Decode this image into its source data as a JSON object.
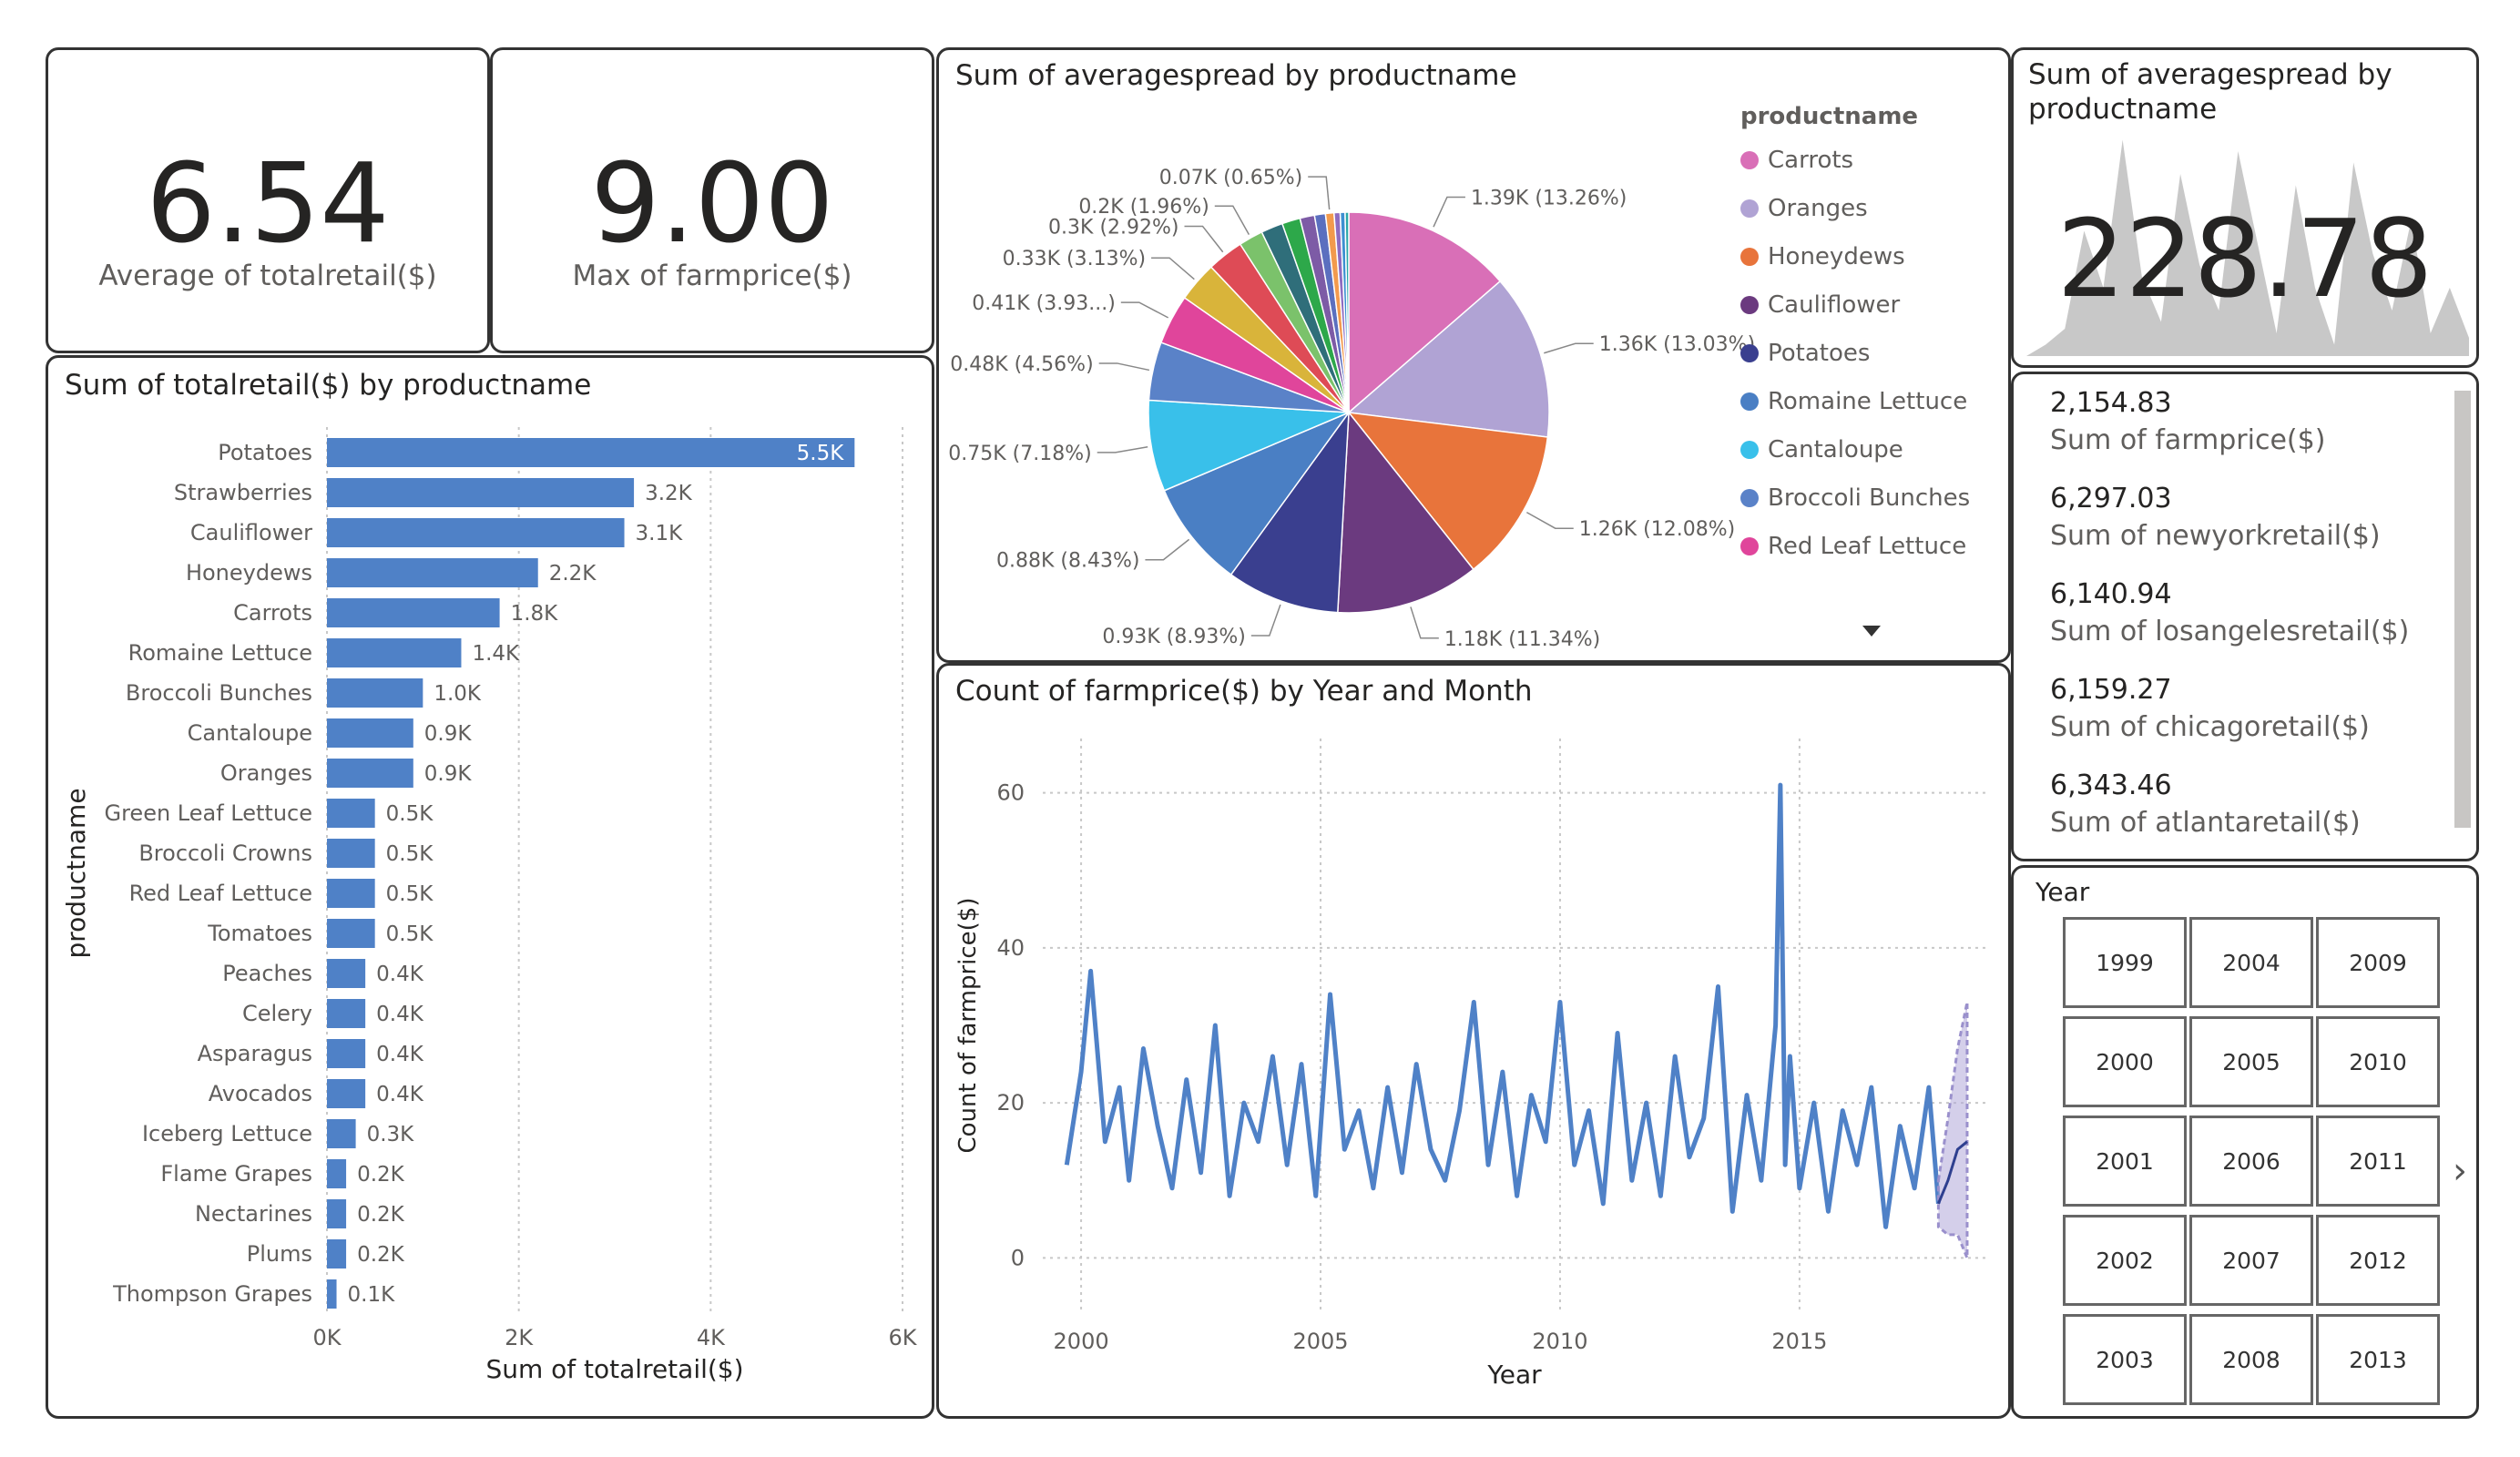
{
  "cards": [
    {
      "value": "6.54",
      "label": "Average of totalretail($)"
    },
    {
      "value": "9.00",
      "label": "Max of farmprice($)"
    }
  ],
  "sparkline_card": {
    "title": "Sum of averagespread by productname",
    "value": "228.78"
  },
  "multi_row_card": [
    {
      "value": "2,154.83",
      "label": "Sum of farmprice($)"
    },
    {
      "value": "6,297.03",
      "label": "Sum of newyorkretail($)"
    },
    {
      "value": "6,140.94",
      "label": "Sum of losangelesretail($)"
    },
    {
      "value": "6,159.27",
      "label": "Sum of chicagoretail($)"
    },
    {
      "value": "6,343.46",
      "label": "Sum of atlantaretail($)"
    }
  ],
  "slicer": {
    "title": "Year",
    "years": [
      "1999",
      "2004",
      "2009",
      "2000",
      "2005",
      "2010",
      "2001",
      "2006",
      "2011",
      "2002",
      "2007",
      "2012",
      "2003",
      "2008",
      "2013"
    ]
  },
  "chart_data": [
    {
      "type": "bar",
      "orientation": "horizontal",
      "title": "Sum of totalretail($) by productname",
      "xlabel": "Sum of totalretail($)",
      "ylabel": "productname",
      "xlim": [
        0,
        6000
      ],
      "xticks": [
        "0K",
        "2K",
        "4K",
        "6K"
      ],
      "grid": true,
      "color": "#4f81c7",
      "categories": [
        "Potatoes",
        "Strawberries",
        "Cauliflower",
        "Honeydews",
        "Carrots",
        "Romaine Lettuce",
        "Broccoli Bunches",
        "Cantaloupe",
        "Oranges",
        "Green Leaf Lettuce",
        "Broccoli Crowns",
        "Red Leaf Lettuce",
        "Tomatoes",
        "Peaches",
        "Celery",
        "Asparagus",
        "Avocados",
        "Iceberg Lettuce",
        "Flame Grapes",
        "Nectarines",
        "Plums",
        "Thompson Grapes"
      ],
      "values": [
        5500,
        3200,
        3100,
        2200,
        1800,
        1400,
        1000,
        900,
        900,
        500,
        500,
        500,
        500,
        400,
        400,
        400,
        400,
        300,
        200,
        200,
        200,
        100
      ],
      "data_labels": [
        "5.5K",
        "3.2K",
        "3.1K",
        "2.2K",
        "1.8K",
        "1.4K",
        "1.0K",
        "0.9K",
        "0.9K",
        "0.5K",
        "0.5K",
        "0.5K",
        "0.5K",
        "0.4K",
        "0.4K",
        "0.4K",
        "0.4K",
        "0.3K",
        "0.2K",
        "0.2K",
        "0.2K",
        "0.1K"
      ]
    },
    {
      "type": "pie",
      "title": "Sum of averagespread by productname",
      "legend_title": "productname",
      "legend_position": "right",
      "legend": [
        {
          "name": "Carrots",
          "color": "#d96fb7"
        },
        {
          "name": "Oranges",
          "color": "#b0a3d4"
        },
        {
          "name": "Honeydews",
          "color": "#e8743b"
        },
        {
          "name": "Cauliflower",
          "color": "#6b3a7f"
        },
        {
          "name": "Potatoes",
          "color": "#3a3f8f"
        },
        {
          "name": "Romaine Lettuce",
          "color": "#4a7fc4"
        },
        {
          "name": "Cantaloupe",
          "color": "#39c0ea"
        },
        {
          "name": "Broccoli Bunches",
          "color": "#5a82c8"
        },
        {
          "name": "Red Leaf Lettuce",
          "color": "#e0459b"
        }
      ],
      "slices": [
        {
          "value": 1390,
          "label": "1.39K (13.26%)",
          "color": "#d96fb7"
        },
        {
          "value": 1360,
          "label": "1.36K (13.03%)",
          "color": "#b0a3d4"
        },
        {
          "value": 1260,
          "label": "1.26K (12.08%)",
          "color": "#e8743b"
        },
        {
          "value": 1180,
          "label": "1.18K (11.34%)",
          "color": "#6b3a7f"
        },
        {
          "value": 930,
          "label": "0.93K (8.93%)",
          "color": "#3a3f8f"
        },
        {
          "value": 880,
          "label": "0.88K (8.43%)",
          "color": "#4a7fc4"
        },
        {
          "value": 750,
          "label": "0.75K (7.18%)",
          "color": "#39c0ea"
        },
        {
          "value": 480,
          "label": "0.48K (4.56%)",
          "color": "#5a82c8"
        },
        {
          "value": 410,
          "label": "0.41K (3.93...)",
          "color": "#e0459b"
        },
        {
          "value": 330,
          "label": "0.33K (3.13%)",
          "color": "#d9b43a"
        },
        {
          "value": 300,
          "label": "0.3K (2.92%)",
          "color": "#de4b56"
        },
        {
          "value": 200,
          "label": "0.2K (1.96%)",
          "color": "#7bc26b"
        },
        {
          "value": 180,
          "label": "",
          "color": "#2f6e7a"
        },
        {
          "value": 150,
          "label": "",
          "color": "#2da84a"
        },
        {
          "value": 120,
          "label": "",
          "color": "#7d5ba6"
        },
        {
          "value": 90,
          "label": "",
          "color": "#5b6fbf"
        },
        {
          "value": 70,
          "label": "0.07K (0.65%)",
          "color": "#f29a4d"
        },
        {
          "value": 50,
          "label": "",
          "color": "#8e6cc0"
        },
        {
          "value": 40,
          "label": "",
          "color": "#3d8fd1"
        },
        {
          "value": 30,
          "label": "",
          "color": "#2aa8a8"
        }
      ]
    },
    {
      "type": "line",
      "title": "Count of farmprice($) by Year and Month",
      "xlabel": "Year",
      "ylabel": "Count of farmprice($)",
      "xlim": [
        1999.2,
        2018.9
      ],
      "ylim": [
        -7,
        67
      ],
      "xticks": [
        2000,
        2005,
        2010,
        2015
      ],
      "yticks": [
        0,
        20,
        40,
        60
      ],
      "grid": true,
      "color": "#4f81c7",
      "series": [
        {
          "x": [
            1999.7,
            2000.0,
            2000.2,
            2000.5,
            2000.8,
            2001.0,
            2001.3,
            2001.6,
            2001.9,
            2002.2,
            2002.5,
            2002.8,
            2003.1,
            2003.4,
            2003.7,
            2004.0,
            2004.3,
            2004.6,
            2004.9,
            2005.2,
            2005.5,
            2005.8,
            2006.1,
            2006.4,
            2006.7,
            2007.0,
            2007.3,
            2007.6,
            2007.9,
            2008.2,
            2008.5,
            2008.8,
            2009.1,
            2009.4,
            2009.7,
            2010.0,
            2010.3,
            2010.6,
            2010.9,
            2011.2,
            2011.5,
            2011.8,
            2012.1,
            2012.4,
            2012.7,
            2013.0,
            2013.3,
            2013.6,
            2013.9,
            2014.2,
            2014.5,
            2014.6,
            2014.7,
            2014.8,
            2015.0,
            2015.3,
            2015.6,
            2015.9,
            2016.2,
            2016.5,
            2016.8,
            2017.1,
            2017.4,
            2017.7,
            2017.9
          ],
          "y": [
            12,
            24,
            37,
            15,
            22,
            10,
            27,
            17,
            9,
            23,
            11,
            30,
            8,
            20,
            15,
            26,
            12,
            25,
            8,
            34,
            14,
            19,
            9,
            22,
            11,
            25,
            14,
            10,
            19,
            33,
            12,
            24,
            8,
            21,
            15,
            33,
            12,
            19,
            7,
            29,
            10,
            20,
            8,
            26,
            13,
            18,
            35,
            6,
            21,
            10,
            30,
            61,
            12,
            26,
            9,
            20,
            6,
            19,
            12,
            22,
            4,
            17,
            9,
            22,
            7
          ]
        }
      ],
      "forecast": {
        "x": [
          2017.9,
          2018.1,
          2018.3,
          2018.5
        ],
        "y": [
          7,
          10,
          14,
          15
        ]
      }
    }
  ]
}
